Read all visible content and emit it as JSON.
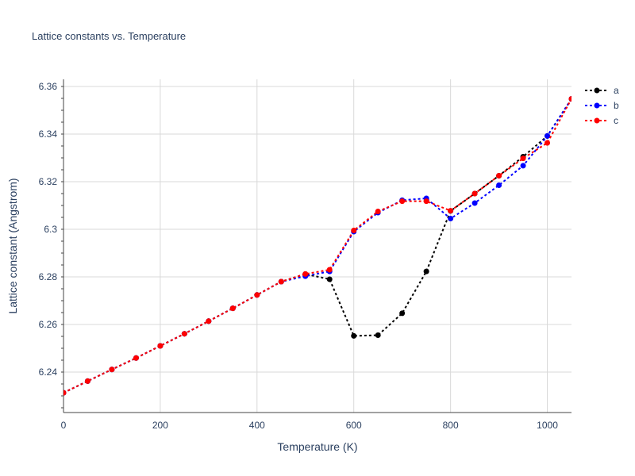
{
  "chart_data": {
    "type": "line",
    "title": "Lattice constants vs. Temperature",
    "xlabel": "Temperature (K)",
    "ylabel": "Lattice constant (Angstrom)",
    "xlim": [
      0,
      1050
    ],
    "ylim": [
      6.223,
      6.363
    ],
    "x_ticks": [
      0,
      200,
      400,
      600,
      800,
      1000
    ],
    "x_tick_labels": [
      "0",
      "200",
      "400",
      "600",
      "800",
      "1000"
    ],
    "y_ticks": [
      6.24,
      6.26,
      6.28,
      6.3,
      6.32,
      6.34,
      6.36
    ],
    "y_tick_labels": [
      "6.24",
      "6.26",
      "6.28",
      "6.3",
      "6.32",
      "6.34",
      "6.36"
    ],
    "grid": true,
    "legend_position": "top-right",
    "x": [
      0,
      50,
      100,
      150,
      200,
      250,
      300,
      350,
      400,
      450,
      500,
      550,
      600,
      650,
      700,
      750,
      800,
      850,
      900,
      950,
      1000,
      1050
    ],
    "series": [
      {
        "name": "a",
        "color": "#000000",
        "values": [
          6.2313,
          6.2362,
          6.2411,
          6.2459,
          6.251,
          6.2561,
          6.2614,
          6.2668,
          6.2724,
          6.278,
          6.2812,
          6.279,
          6.2552,
          6.2555,
          6.2647,
          6.2823,
          6.3077,
          6.315,
          6.3225,
          6.3305,
          6.3392,
          6.3548
        ]
      },
      {
        "name": "b",
        "color": "#0000ff",
        "values": [
          6.2313,
          6.2362,
          6.2411,
          6.2459,
          6.251,
          6.2561,
          6.2614,
          6.2668,
          6.2724,
          6.278,
          6.2803,
          6.2823,
          6.299,
          6.307,
          6.3122,
          6.313,
          6.3045,
          6.311,
          6.3185,
          6.3267,
          6.3392,
          6.3548
        ]
      },
      {
        "name": "c",
        "color": "#ff0000",
        "values": [
          6.2313,
          6.2362,
          6.2411,
          6.2459,
          6.251,
          6.2561,
          6.2614,
          6.2668,
          6.2724,
          6.278,
          6.2812,
          6.283,
          6.2995,
          6.3075,
          6.3118,
          6.3118,
          6.3078,
          6.315,
          6.3225,
          6.3298,
          6.3363,
          6.3548
        ]
      }
    ]
  }
}
